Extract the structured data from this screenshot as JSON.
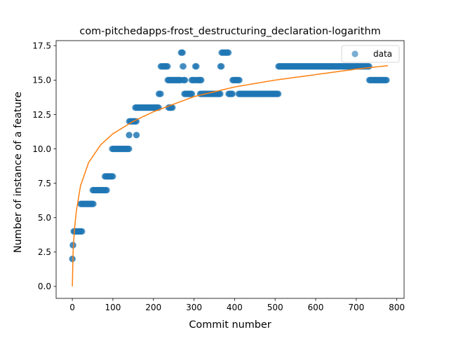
{
  "chart_data": {
    "type": "scatter",
    "title": "com-pitchedapps-frost_destructuring_declaration-logarithm",
    "xlabel": "Commit number",
    "ylabel": "Number of instance of a feature",
    "xlim": [
      -40,
      818
    ],
    "ylim": [
      -0.87,
      17.87
    ],
    "xticks": [
      0,
      100,
      200,
      300,
      400,
      500,
      600,
      700,
      800
    ],
    "yticks": [
      0.0,
      2.5,
      5.0,
      7.5,
      10.0,
      12.5,
      15.0,
      17.5
    ],
    "xtick_labels": [
      "0",
      "100",
      "200",
      "300",
      "400",
      "500",
      "600",
      "700",
      "800"
    ],
    "ytick_labels": [
      "0.0",
      "2.5",
      "5.0",
      "7.5",
      "10.0",
      "12.5",
      "15.0",
      "17.5"
    ],
    "grid": false,
    "legend": {
      "position": "upper right",
      "entries": [
        "data"
      ]
    },
    "colors": {
      "data": "#1f77b4",
      "fit": "#ff7f0e"
    },
    "series": [
      {
        "name": "data",
        "kind": "scatter",
        "segments": [
          {
            "x_from": 0,
            "x_to": 0,
            "y": 2
          },
          {
            "x_from": 1,
            "x_to": 2,
            "y": 3
          },
          {
            "x_from": 3,
            "x_to": 24,
            "y": 4
          },
          {
            "x_from": 20,
            "x_to": 52,
            "y": 6
          },
          {
            "x_from": 50,
            "x_to": 85,
            "y": 7
          },
          {
            "x_from": 80,
            "x_to": 100,
            "y": 8
          },
          {
            "x_from": 98,
            "x_to": 140,
            "y": 10
          },
          {
            "x_from": 140,
            "x_to": 140,
            "y": 11
          },
          {
            "x_from": 158,
            "x_to": 158,
            "y": 11
          },
          {
            "x_from": 140,
            "x_to": 158,
            "y": 12
          },
          {
            "x_from": 155,
            "x_to": 213,
            "y": 13
          },
          {
            "x_from": 213,
            "x_to": 218,
            "y": 14
          },
          {
            "x_from": 218,
            "x_to": 235,
            "y": 16
          },
          {
            "x_from": 235,
            "x_to": 250,
            "y": 15
          },
          {
            "x_from": 237,
            "x_to": 247,
            "y": 13
          },
          {
            "x_from": 250,
            "x_to": 268,
            "y": 15
          },
          {
            "x_from": 268,
            "x_to": 272,
            "y": 17
          },
          {
            "x_from": 272,
            "x_to": 274,
            "y": 16
          },
          {
            "x_from": 274,
            "x_to": 278,
            "y": 15
          },
          {
            "x_from": 276,
            "x_to": 295,
            "y": 14
          },
          {
            "x_from": 294,
            "x_to": 302,
            "y": 15
          },
          {
            "x_from": 303,
            "x_to": 306,
            "y": 16
          },
          {
            "x_from": 306,
            "x_to": 318,
            "y": 15
          },
          {
            "x_from": 315,
            "x_to": 365,
            "y": 14
          },
          {
            "x_from": 365,
            "x_to": 368,
            "y": 16
          },
          {
            "x_from": 368,
            "x_to": 385,
            "y": 17
          },
          {
            "x_from": 385,
            "x_to": 395,
            "y": 14
          },
          {
            "x_from": 395,
            "x_to": 412,
            "y": 15
          },
          {
            "x_from": 410,
            "x_to": 508,
            "y": 14
          },
          {
            "x_from": 508,
            "x_to": 732,
            "y": 16
          },
          {
            "x_from": 732,
            "x_to": 775,
            "y": 15
          }
        ]
      },
      {
        "name": "",
        "kind": "line",
        "fit": "logarithmic",
        "x_from": 0,
        "x_to": 778,
        "points": [
          [
            0,
            0.0
          ],
          [
            1,
            1.4
          ],
          [
            2,
            2.6
          ],
          [
            5,
            4.1
          ],
          [
            10,
            5.5
          ],
          [
            20,
            7.3
          ],
          [
            40,
            9.0
          ],
          [
            70,
            10.3
          ],
          [
            100,
            11.1
          ],
          [
            150,
            12.0
          ],
          [
            200,
            12.7
          ],
          [
            300,
            13.8
          ],
          [
            400,
            14.5
          ],
          [
            500,
            15.0
          ],
          [
            600,
            15.4
          ],
          [
            700,
            15.8
          ],
          [
            778,
            16.05
          ]
        ]
      }
    ]
  }
}
